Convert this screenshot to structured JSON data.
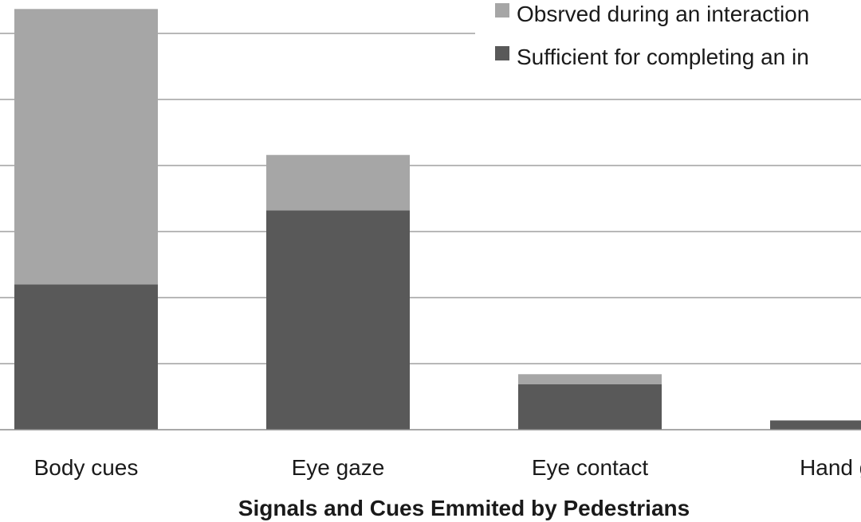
{
  "chart_data": {
    "type": "bar",
    "stacked": true,
    "categories": [
      "Body cues",
      "Eye gaze",
      "Eye contact",
      "Hand ge"
    ],
    "series": [
      {
        "name": "Sufficient for completing an in",
        "color": "#595959",
        "values": [
          22,
          33.2,
          6.9,
          1.4
        ]
      },
      {
        "name": "Obsrved during an interaction",
        "color": "#a6a6a6",
        "values": [
          41.7,
          8.4,
          1.5,
          0
        ]
      }
    ],
    "xlabel": "Signals and Cues Emmited by Pedestrians",
    "ylim": [
      0,
      65
    ],
    "grid": true,
    "legend_position": "top-right"
  }
}
